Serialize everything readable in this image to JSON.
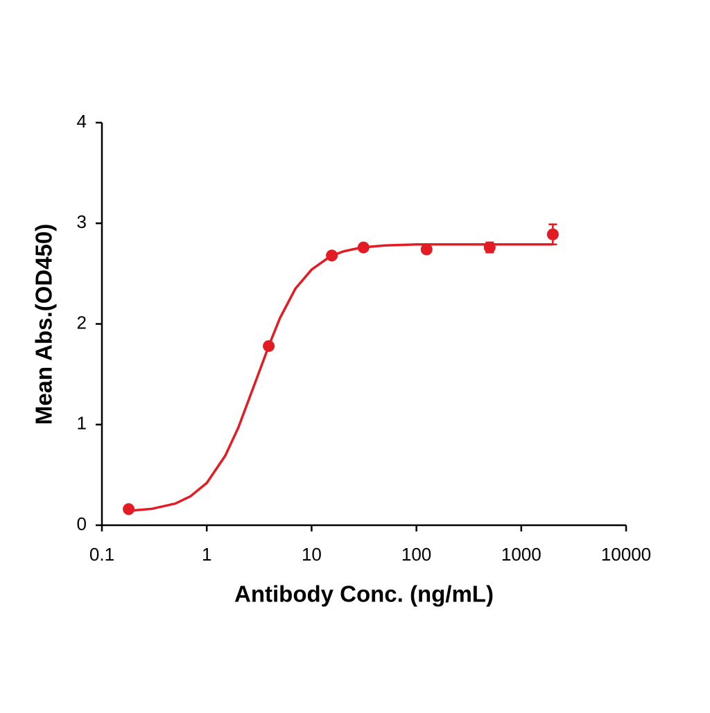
{
  "chart_data": {
    "type": "scatter",
    "x_label": "Antibody Conc. (ng/mL)",
    "y_label": "Mean Abs.(OD450)",
    "x_scale": "log",
    "xlim": [
      0.1,
      10000
    ],
    "xticks": [
      0.1,
      1,
      10,
      100,
      1000,
      10000
    ],
    "ylim": [
      0,
      4
    ],
    "yticks": [
      0,
      1,
      2,
      3,
      4
    ],
    "series": [
      {
        "mode": "markers",
        "color": "#e31b23",
        "x": [
          0.18,
          3.9,
          15.6,
          31.25,
          125,
          500,
          2000
        ],
        "values": [
          0.16,
          1.78,
          2.68,
          2.76,
          2.74,
          2.76,
          2.89
        ],
        "errors": [
          0.02,
          0.03,
          0.03,
          0.02,
          0.02,
          0.05,
          0.1
        ]
      },
      {
        "mode": "line",
        "color": "#e31b23",
        "x": [
          0.18,
          0.3,
          0.5,
          0.7,
          1,
          1.5,
          2,
          3,
          4,
          5,
          7,
          10,
          15,
          20,
          30,
          50,
          100,
          300,
          1000,
          2000
        ],
        "values": [
          0.143,
          0.163,
          0.215,
          0.288,
          0.42,
          0.69,
          0.97,
          1.46,
          1.81,
          2.06,
          2.35,
          2.54,
          2.67,
          2.72,
          2.76,
          2.78,
          2.79,
          2.79,
          2.79,
          2.79
        ]
      }
    ]
  }
}
